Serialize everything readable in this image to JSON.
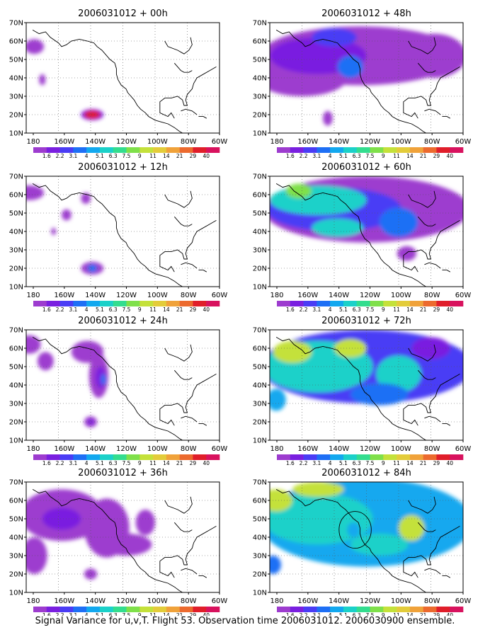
{
  "caption": "Signal Variance for u,v,T. Flight 53. Observation time 2006031012. 2006030900 ensemble.",
  "colorbar": {
    "labels": [
      "1.6",
      "2.2",
      "3.1",
      "4",
      "5.1",
      "6.3",
      "7.5",
      "9",
      "11",
      "14",
      "21",
      "29",
      "40"
    ],
    "colors": [
      "#9d3ccf",
      "#7a1fe0",
      "#4a3cf5",
      "#1e6ff5",
      "#12a8ef",
      "#1bd1c9",
      "#33dd8f",
      "#7fe04a",
      "#c4e13a",
      "#e3cc3a",
      "#f0a23a",
      "#ec6a2e",
      "#e01e2a",
      "#d8125e"
    ]
  },
  "chart_data": [
    {
      "type": "heatmap",
      "title": "2006031012 + 00h",
      "lead_hours": 0,
      "xlim": [
        "180",
        "60W"
      ],
      "ylim": [
        "10N",
        "70N"
      ],
      "x_tick_labels": [
        "180",
        "160W",
        "140W",
        "120W",
        "100W",
        "80W",
        "60W"
      ],
      "y_tick_labels": [
        "10N",
        "20N",
        "30N",
        "40N",
        "50N",
        "60N",
        "70N"
      ],
      "grid": true,
      "regions": [
        {
          "lon": 175,
          "lat": 57,
          "rlon": 6,
          "rlat": 4,
          "level": 0
        },
        {
          "lon": 170,
          "lat": 39,
          "rlon": 2,
          "rlat": 3,
          "level": 0
        },
        {
          "lon": 139,
          "lat": 20,
          "rlon": 7,
          "rlat": 3,
          "level": 1
        },
        {
          "lon": 139,
          "lat": 20,
          "rlon": 5,
          "rlat": 2.2,
          "level": 12
        }
      ]
    },
    {
      "type": "heatmap",
      "title": "2006031012 + 12h",
      "lead_hours": 12,
      "xlim": [
        "180",
        "60W"
      ],
      "ylim": [
        "10N",
        "70N"
      ],
      "x_tick_labels": [
        "180",
        "160W",
        "140W",
        "120W",
        "100W",
        "80W",
        "60W"
      ],
      "y_tick_labels": [
        "10N",
        "20N",
        "30N",
        "40N",
        "50N",
        "60N",
        "70N"
      ],
      "grid": true,
      "regions": [
        {
          "lon": 178,
          "lat": 61,
          "rlon": 9,
          "rlat": 4,
          "level": 0
        },
        {
          "lon": 143,
          "lat": 58,
          "rlon": 3,
          "rlat": 3,
          "level": 0
        },
        {
          "lon": 155,
          "lat": 49,
          "rlon": 3,
          "rlat": 3,
          "level": 0
        },
        {
          "lon": 163,
          "lat": 40,
          "rlon": 1.5,
          "rlat": 2,
          "level": 0
        },
        {
          "lon": 139,
          "lat": 20,
          "rlon": 7,
          "rlat": 3.5,
          "level": 0
        },
        {
          "lon": 139,
          "lat": 20,
          "rlon": 3,
          "rlat": 2,
          "level": 3
        }
      ]
    },
    {
      "type": "heatmap",
      "title": "2006031012 + 24h",
      "lead_hours": 24,
      "xlim": [
        "180",
        "60W"
      ],
      "ylim": [
        "10N",
        "70N"
      ],
      "x_tick_labels": [
        "180",
        "160W",
        "140W",
        "120W",
        "100W",
        "80W",
        "60W"
      ],
      "y_tick_labels": [
        "10N",
        "20N",
        "30N",
        "40N",
        "50N",
        "60N",
        "70N"
      ],
      "grid": true,
      "regions": [
        {
          "lon": 178,
          "lat": 62,
          "rlon": 7,
          "rlat": 5,
          "level": 0
        },
        {
          "lon": 168,
          "lat": 53,
          "rlon": 5,
          "rlat": 5,
          "level": 0
        },
        {
          "lon": 142,
          "lat": 58,
          "rlon": 10,
          "rlat": 6,
          "level": 0
        },
        {
          "lon": 135,
          "lat": 45,
          "rlon": 6,
          "rlat": 12,
          "level": 0
        },
        {
          "lon": 134,
          "lat": 44,
          "rlon": 3,
          "rlat": 6,
          "level": 1
        },
        {
          "lon": 132,
          "lat": 43,
          "rlon": 1.5,
          "rlat": 3,
          "level": 3
        },
        {
          "lon": 140,
          "lat": 20,
          "rlon": 4,
          "rlat": 3,
          "level": 0
        },
        {
          "lon": 140,
          "lat": 20,
          "rlon": 2,
          "rlat": 1.5,
          "level": 1
        }
      ]
    },
    {
      "type": "heatmap",
      "title": "2006031012 + 36h",
      "lead_hours": 36,
      "xlim": [
        "180",
        "60W"
      ],
      "ylim": [
        "10N",
        "70N"
      ],
      "x_tick_labels": [
        "180",
        "160W",
        "140W",
        "120W",
        "100W",
        "80W",
        "60W"
      ],
      "y_tick_labels": [
        "10N",
        "20N",
        "30N",
        "40N",
        "50N",
        "60N",
        "70N"
      ],
      "grid": true,
      "regions": [
        {
          "lon": 158,
          "lat": 52,
          "rlon": 26,
          "rlat": 14,
          "level": 0
        },
        {
          "lon": 130,
          "lat": 45,
          "rlon": 14,
          "rlat": 16,
          "level": 0
        },
        {
          "lon": 175,
          "lat": 30,
          "rlon": 8,
          "rlat": 10,
          "level": 0
        },
        {
          "lon": 118,
          "lat": 36,
          "rlon": 16,
          "rlat": 6,
          "level": 0
        },
        {
          "lon": 106,
          "lat": 48,
          "rlon": 6,
          "rlat": 7,
          "level": 0
        },
        {
          "lon": 158,
          "lat": 50,
          "rlon": 12,
          "rlat": 6,
          "level": 1
        },
        {
          "lon": 140,
          "lat": 20,
          "rlon": 4,
          "rlat": 3,
          "level": 0
        }
      ]
    },
    {
      "type": "heatmap",
      "title": "2006031012 + 48h",
      "lead_hours": 48,
      "xlim": [
        "180",
        "60W"
      ],
      "ylim": [
        "10N",
        "70N"
      ],
      "x_tick_labels": [
        "180",
        "160W",
        "140W",
        "120W",
        "100W",
        "80W",
        "60W"
      ],
      "y_tick_labels": [
        "10N",
        "20N",
        "30N",
        "40N",
        "50N",
        "60N",
        "70N"
      ],
      "grid": true,
      "regions": [
        {
          "lon": 124,
          "lat": 52,
          "rlon": 62,
          "rlat": 16,
          "level": 0
        },
        {
          "lon": 160,
          "lat": 40,
          "rlon": 28,
          "rlat": 10,
          "level": 0
        },
        {
          "lon": 150,
          "lat": 52,
          "rlon": 30,
          "rlat": 10,
          "level": 1
        },
        {
          "lon": 140,
          "lat": 62,
          "rlon": 14,
          "rlat": 5,
          "level": 2
        },
        {
          "lon": 130,
          "lat": 46,
          "rlon": 8,
          "rlat": 6,
          "level": 3
        },
        {
          "lon": 78,
          "lat": 52,
          "rlon": 20,
          "rlat": 12,
          "level": 0
        },
        {
          "lon": 144,
          "lat": 18,
          "rlon": 3,
          "rlat": 4,
          "level": 0
        }
      ]
    },
    {
      "type": "heatmap",
      "title": "2006031012 + 60h",
      "lead_hours": 60,
      "xlim": [
        "180",
        "60W"
      ],
      "ylim": [
        "10N",
        "70N"
      ],
      "x_tick_labels": [
        "180",
        "160W",
        "140W",
        "120W",
        "100W",
        "80W",
        "60W"
      ],
      "y_tick_labels": [
        "10N",
        "20N",
        "30N",
        "40N",
        "50N",
        "60N",
        "70N"
      ],
      "grid": true,
      "regions": [
        {
          "lon": 120,
          "lat": 52,
          "rlon": 64,
          "rlat": 18,
          "level": 0
        },
        {
          "lon": 140,
          "lat": 52,
          "rlon": 42,
          "rlat": 12,
          "level": 2
        },
        {
          "lon": 150,
          "lat": 57,
          "rlon": 30,
          "rlat": 8,
          "level": 5
        },
        {
          "lon": 162,
          "lat": 62,
          "rlon": 8,
          "rlat": 4,
          "level": 7
        },
        {
          "lon": 138,
          "lat": 42,
          "rlon": 16,
          "rlat": 5,
          "level": 5
        },
        {
          "lon": 100,
          "lat": 45,
          "rlon": 12,
          "rlat": 8,
          "level": 3
        },
        {
          "lon": 95,
          "lat": 28,
          "rlon": 6,
          "rlat": 4,
          "level": 0
        }
      ]
    },
    {
      "type": "heatmap",
      "title": "2006031012 + 72h",
      "lead_hours": 72,
      "xlim": [
        "180",
        "60W"
      ],
      "ylim": [
        "10N",
        "70N"
      ],
      "x_tick_labels": [
        "180",
        "160W",
        "140W",
        "120W",
        "100W",
        "80W",
        "60W"
      ],
      "y_tick_labels": [
        "10N",
        "20N",
        "30N",
        "40N",
        "50N",
        "60N",
        "70N"
      ],
      "grid": true,
      "regions": [
        {
          "lon": 120,
          "lat": 50,
          "rlon": 66,
          "rlat": 20,
          "level": 2
        },
        {
          "lon": 150,
          "lat": 50,
          "rlon": 34,
          "rlat": 14,
          "level": 5
        },
        {
          "lon": 166,
          "lat": 58,
          "rlon": 12,
          "rlat": 6,
          "level": 8
        },
        {
          "lon": 130,
          "lat": 60,
          "rlon": 10,
          "rlat": 5,
          "level": 8
        },
        {
          "lon": 100,
          "lat": 46,
          "rlon": 14,
          "rlat": 10,
          "level": 5
        },
        {
          "lon": 112,
          "lat": 35,
          "rlon": 18,
          "rlat": 6,
          "level": 3
        },
        {
          "lon": 176,
          "lat": 32,
          "rlon": 6,
          "rlat": 6,
          "level": 4
        },
        {
          "lon": 80,
          "lat": 60,
          "rlon": 12,
          "rlat": 6,
          "level": 1
        }
      ]
    },
    {
      "type": "heatmap",
      "title": "2006031012 + 84h",
      "lead_hours": 84,
      "xlim": [
        "180",
        "60W"
      ],
      "ylim": [
        "10N",
        "70N"
      ],
      "x_tick_labels": [
        "180",
        "160W",
        "140W",
        "120W",
        "100W",
        "80W",
        "60W"
      ],
      "y_tick_labels": [
        "10N",
        "20N",
        "30N",
        "40N",
        "50N",
        "60N",
        "70N"
      ],
      "grid": true,
      "regions": [
        {
          "lon": 120,
          "lat": 48,
          "rlon": 66,
          "rlat": 24,
          "level": 4
        },
        {
          "lon": 150,
          "lat": 50,
          "rlon": 34,
          "rlat": 14,
          "level": 5
        },
        {
          "lon": 176,
          "lat": 60,
          "rlon": 10,
          "rlat": 6,
          "level": 8
        },
        {
          "lon": 150,
          "lat": 66,
          "rlon": 16,
          "rlat": 4,
          "level": 8
        },
        {
          "lon": 92,
          "lat": 45,
          "rlon": 8,
          "rlat": 7,
          "level": 8
        },
        {
          "lon": 112,
          "lat": 36,
          "rlon": 18,
          "rlat": 6,
          "level": 5
        },
        {
          "lon": 178,
          "lat": 25,
          "rlon": 5,
          "rlat": 5,
          "level": 3
        },
        {
          "lon": 128,
          "lat": 44,
          "rlon": 4,
          "rlat": 4,
          "level": 4
        }
      ],
      "annotations": [
        {
          "shape": "circle",
          "lon": 127,
          "lat": 44,
          "radius_deg": 10
        }
      ]
    }
  ]
}
